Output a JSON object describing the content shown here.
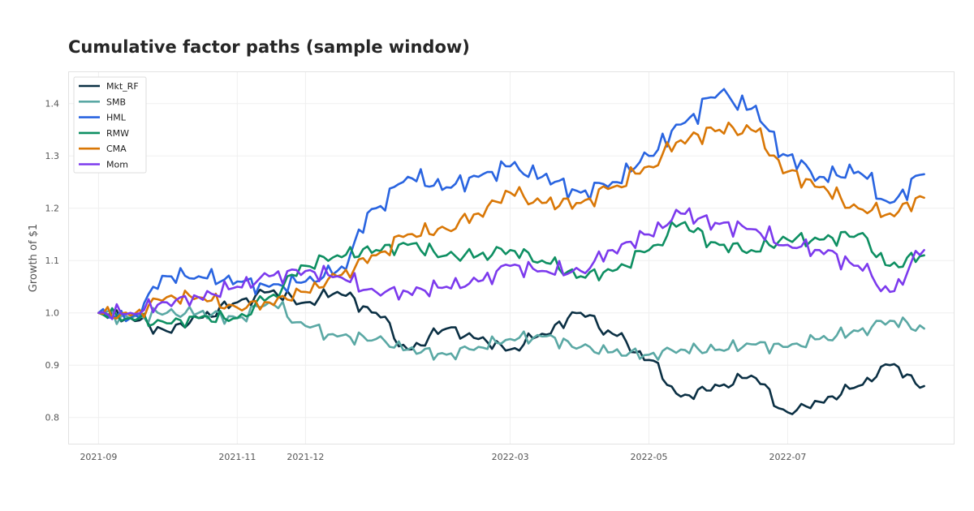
{
  "chart_data": {
    "type": "line",
    "title": "Cumulative factor paths (sample window)",
    "xlabel": "",
    "ylabel": "Growth of $1",
    "x_ticks": [
      "2021-09",
      "2021-11",
      "2021-12",
      "2022-03",
      "2022-05",
      "2022-07"
    ],
    "y_ticks": [
      "0.8",
      "0.9",
      "1.0",
      "1.1",
      "1.2",
      "1.3",
      "1.4"
    ],
    "ylim": [
      0.75,
      1.46
    ],
    "xlim": [
      "2021-08-19",
      "2022-09-12"
    ],
    "grid": true,
    "legend_position": "top-left",
    "x": [
      "2021-09-01",
      "2021-09-15",
      "2021-10-01",
      "2021-10-15",
      "2021-11-01",
      "2021-11-15",
      "2021-12-01",
      "2021-12-15",
      "2022-01-01",
      "2022-01-15",
      "2022-02-01",
      "2022-02-15",
      "2022-03-01",
      "2022-03-15",
      "2022-04-01",
      "2022-04-15",
      "2022-05-01",
      "2022-05-15",
      "2022-06-01",
      "2022-06-15",
      "2022-07-01",
      "2022-07-15",
      "2022-08-01",
      "2022-08-15",
      "2022-08-30"
    ],
    "series": [
      {
        "name": "Mkt_RF",
        "color": "#0b3044",
        "values": [
          1.0,
          0.99,
          0.965,
          0.99,
          1.02,
          1.04,
          1.02,
          1.04,
          1.0,
          0.93,
          0.97,
          0.95,
          0.93,
          0.96,
          1.0,
          0.96,
          0.91,
          0.84,
          0.86,
          0.88,
          0.81,
          0.83,
          0.86,
          0.9,
          0.86
        ]
      },
      {
        "name": "SMB",
        "color": "#5aa8a4",
        "values": [
          1.0,
          0.99,
          1.0,
          1.0,
          0.99,
          1.02,
          0.975,
          0.955,
          0.95,
          0.93,
          0.92,
          0.935,
          0.95,
          0.955,
          0.935,
          0.925,
          0.92,
          0.93,
          0.93,
          0.94,
          0.935,
          0.95,
          0.965,
          0.985,
          0.97
        ]
      },
      {
        "name": "HML",
        "color": "#2964e0",
        "values": [
          1.0,
          0.99,
          1.07,
          1.07,
          1.06,
          1.05,
          1.06,
          1.08,
          1.2,
          1.26,
          1.24,
          1.26,
          1.28,
          1.26,
          1.23,
          1.25,
          1.3,
          1.36,
          1.42,
          1.39,
          1.3,
          1.26,
          1.27,
          1.21,
          1.265
        ]
      },
      {
        "name": "RMW",
        "color": "#0e8f62",
        "values": [
          1.0,
          0.99,
          0.98,
          0.99,
          0.99,
          1.03,
          1.09,
          1.11,
          1.12,
          1.13,
          1.11,
          1.11,
          1.12,
          1.1,
          1.07,
          1.08,
          1.12,
          1.17,
          1.13,
          1.12,
          1.14,
          1.14,
          1.15,
          1.09,
          1.11
        ]
      },
      {
        "name": "CMA",
        "color": "#d97706",
        "values": [
          1.0,
          0.995,
          1.03,
          1.03,
          1.01,
          1.02,
          1.04,
          1.07,
          1.11,
          1.15,
          1.16,
          1.19,
          1.23,
          1.21,
          1.21,
          1.24,
          1.28,
          1.33,
          1.35,
          1.35,
          1.27,
          1.24,
          1.2,
          1.19,
          1.22
        ]
      },
      {
        "name": "Mom",
        "color": "#7c3aed",
        "values": [
          1.0,
          1.0,
          1.02,
          1.03,
          1.05,
          1.07,
          1.08,
          1.07,
          1.04,
          1.04,
          1.05,
          1.06,
          1.09,
          1.08,
          1.08,
          1.12,
          1.15,
          1.19,
          1.17,
          1.16,
          1.13,
          1.12,
          1.09,
          1.04,
          1.12
        ]
      }
    ]
  }
}
